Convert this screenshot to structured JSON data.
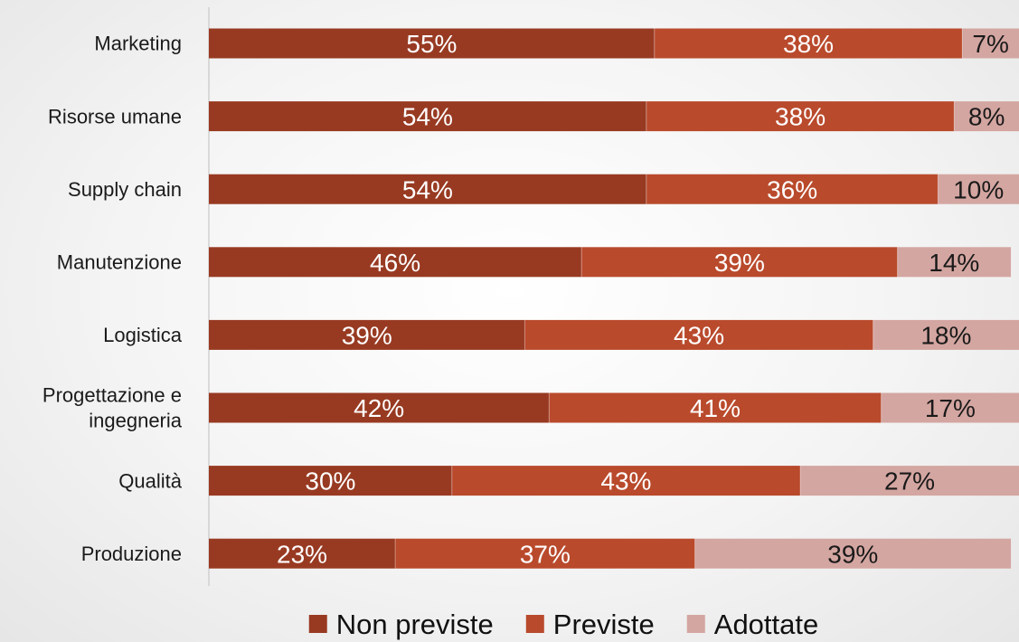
{
  "chart_data": {
    "type": "bar",
    "orientation": "horizontal",
    "stacked": true,
    "categories": [
      "Marketing",
      "Risorse umane",
      "Supply chain",
      "Manutenzione",
      "Logistica",
      "Progettazione e ingegneria",
      "Qualità",
      "Produzione"
    ],
    "category_label_lines": [
      [
        "Marketing"
      ],
      [
        "Risorse umane"
      ],
      [
        "Supply chain"
      ],
      [
        "Manutenzione"
      ],
      [
        "Logistica"
      ],
      [
        "Progettazione e",
        "ingegneria"
      ],
      [
        "Qualità"
      ],
      [
        "Produzione"
      ]
    ],
    "series": [
      {
        "name": "Non previste",
        "color": "#983A22",
        "label_color": "#ffffff",
        "values": [
          55,
          54,
          54,
          46,
          39,
          42,
          30,
          23
        ]
      },
      {
        "name": "Previste",
        "color": "#B94A2C",
        "label_color": "#ffffff",
        "values": [
          38,
          38,
          36,
          39,
          43,
          41,
          43,
          37
        ]
      },
      {
        "name": "Adottate",
        "color": "#D4A6A1",
        "label_color": "#1a1a1a",
        "values": [
          7,
          8,
          10,
          14,
          18,
          17,
          27,
          39
        ]
      }
    ],
    "value_suffix": "%",
    "xlim": [
      0,
      100
    ],
    "grid": false,
    "legend": "bottom",
    "title": "",
    "xlabel": "",
    "ylabel": ""
  }
}
